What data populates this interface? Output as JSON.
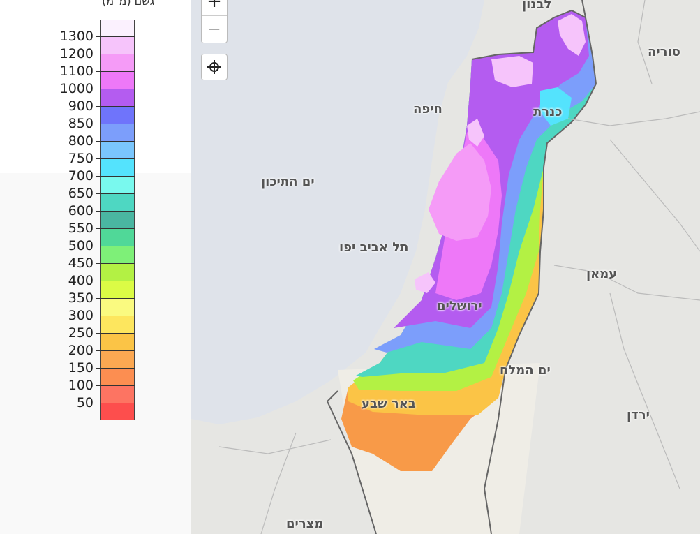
{
  "legend": {
    "title": "גשם (מ\"מ)",
    "ticks": [
      "1300",
      "1200",
      "1100",
      "1000",
      "900",
      "850",
      "800",
      "750",
      "700",
      "650",
      "600",
      "550",
      "500",
      "450",
      "400",
      "350",
      "300",
      "250",
      "200",
      "150",
      "100",
      "50"
    ],
    "colors": [
      "#fbf1fe",
      "#f6c4fb",
      "#f59bf7",
      "#ee78f8",
      "#b45cf0",
      "#6f74fb",
      "#7c9efb",
      "#7ac6fd",
      "#54e3fd",
      "#79f9ee",
      "#4ed7c2",
      "#4ab6a1",
      "#50d898",
      "#7ef078",
      "#b3f144",
      "#dbfb45",
      "#fafa80",
      "#fde65e",
      "#fbc446",
      "#fca852",
      "#fc8e51",
      "#fd7462",
      "#fd4e4d"
    ]
  },
  "map": {
    "zoom_in": "+",
    "zoom_out": "—",
    "labels": {
      "lebanon": "לבנון",
      "syria": "סוריה",
      "haifa": "חיפה",
      "kinneret": "כנרת",
      "mediterranean": "ים התיכון",
      "tel_aviv": "תל אביב יפו",
      "jerusalem": "ירושלים",
      "amman": "עמאן",
      "dead_sea": "ים המלח",
      "beer_sheva": "באר שבע",
      "jordan": "ירדן",
      "egypt": "מצרים"
    }
  }
}
